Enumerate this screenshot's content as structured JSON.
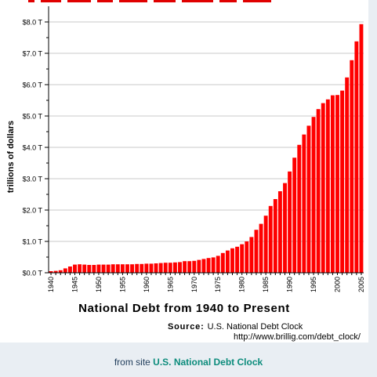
{
  "chart_data": {
    "type": "bar",
    "title": "National Debt from 1940 to Present",
    "ylabel": "trillions of dollars",
    "xlabel": "",
    "ylim": [
      0,
      8.5
    ],
    "grid": true,
    "bar_color": "#ff0000",
    "grid_color": "#c8c8c8",
    "ytick_values": [
      0,
      1,
      2,
      3,
      4,
      5,
      6,
      7,
      8
    ],
    "ytick_labels": [
      "$0.0 T",
      "$1.0 T",
      "$2.0 T",
      "$3.0 T",
      "$4.0 T",
      "$5.0 T",
      "$6.0 T",
      "$7.0 T",
      "$8.0 T"
    ],
    "xtick_labels": [
      "1940",
      "1945",
      "1950",
      "1955",
      "1960",
      "1965",
      "1970",
      "1975",
      "1980",
      "1985",
      "1990",
      "1995",
      "2000",
      "2005"
    ],
    "categories": [
      1940,
      1941,
      1942,
      1943,
      1944,
      1945,
      1946,
      1947,
      1948,
      1949,
      1950,
      1951,
      1952,
      1953,
      1954,
      1955,
      1956,
      1957,
      1958,
      1959,
      1960,
      1961,
      1962,
      1963,
      1964,
      1965,
      1966,
      1967,
      1968,
      1969,
      1970,
      1971,
      1972,
      1973,
      1974,
      1975,
      1976,
      1977,
      1978,
      1979,
      1980,
      1981,
      1982,
      1983,
      1984,
      1985,
      1986,
      1987,
      1988,
      1989,
      1990,
      1991,
      1992,
      1993,
      1994,
      1995,
      1996,
      1997,
      1998,
      1999,
      2000,
      2001,
      2002,
      2003,
      2004,
      2005
    ],
    "values": [
      0.05,
      0.06,
      0.08,
      0.14,
      0.2,
      0.26,
      0.27,
      0.26,
      0.25,
      0.25,
      0.26,
      0.26,
      0.26,
      0.27,
      0.27,
      0.27,
      0.27,
      0.27,
      0.28,
      0.28,
      0.29,
      0.29,
      0.3,
      0.31,
      0.32,
      0.32,
      0.33,
      0.34,
      0.37,
      0.37,
      0.38,
      0.41,
      0.44,
      0.47,
      0.49,
      0.54,
      0.63,
      0.71,
      0.78,
      0.83,
      0.91,
      1.0,
      1.14,
      1.37,
      1.56,
      1.82,
      2.13,
      2.35,
      2.6,
      2.86,
      3.23,
      3.67,
      4.08,
      4.41,
      4.69,
      4.97,
      5.22,
      5.41,
      5.53,
      5.66,
      5.67,
      5.81,
      6.23,
      6.78,
      7.38,
      7.93
    ],
    "annotations": {
      "source_label": "Source:",
      "source_name": "U.S. National Debt Clock",
      "source_url": "http://www.brillig.com/debt_clock/"
    }
  },
  "credit": {
    "prefix": "from site ",
    "link_text": "U.S. National Debt Clock"
  }
}
